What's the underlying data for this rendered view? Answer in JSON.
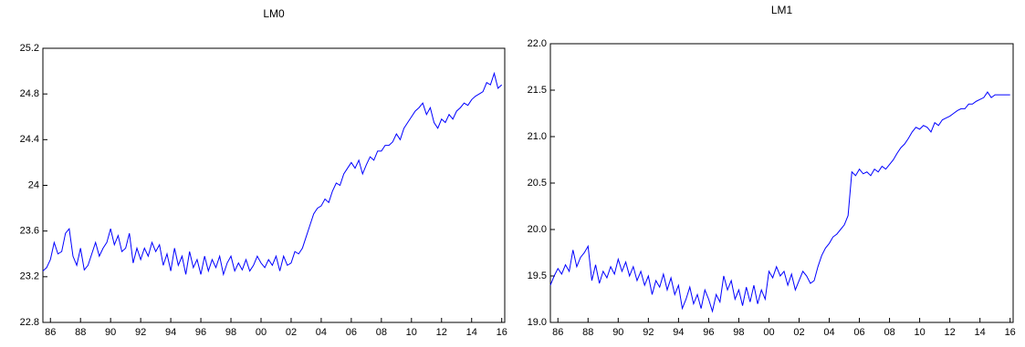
{
  "chart_data": [
    {
      "type": "line",
      "title": "LM0",
      "color": "#0000ff",
      "x": [
        1985.5,
        1985.75,
        1986.0,
        1986.25,
        1986.5,
        1986.75,
        1987.0,
        1987.25,
        1987.5,
        1987.75,
        1988.0,
        1988.25,
        1988.5,
        1988.75,
        1989.0,
        1989.25,
        1989.5,
        1989.75,
        1990.0,
        1990.25,
        1990.5,
        1990.75,
        1991.0,
        1991.25,
        1991.5,
        1991.75,
        1992.0,
        1992.25,
        1992.5,
        1992.75,
        1993.0,
        1993.25,
        1993.5,
        1993.75,
        1994.0,
        1994.25,
        1994.5,
        1994.75,
        1995.0,
        1995.25,
        1995.5,
        1995.75,
        1996.0,
        1996.25,
        1996.5,
        1996.75,
        1997.0,
        1997.25,
        1997.5,
        1997.75,
        1998.0,
        1998.25,
        1998.5,
        1998.75,
        1999.0,
        1999.25,
        1999.5,
        1999.75,
        2000.0,
        2000.25,
        2000.5,
        2000.75,
        2001.0,
        2001.25,
        2001.5,
        2001.75,
        2002.0,
        2002.25,
        2002.5,
        2002.75,
        2003.0,
        2003.25,
        2003.5,
        2003.75,
        2004.0,
        2004.25,
        2004.5,
        2004.75,
        2005.0,
        2005.25,
        2005.5,
        2005.75,
        2006.0,
        2006.25,
        2006.5,
        2006.75,
        2007.0,
        2007.25,
        2007.5,
        2007.75,
        2008.0,
        2008.25,
        2008.5,
        2008.75,
        2009.0,
        2009.25,
        2009.5,
        2009.75,
        2010.0,
        2010.25,
        2010.5,
        2010.75,
        2011.0,
        2011.25,
        2011.5,
        2011.75,
        2012.0,
        2012.25,
        2012.5,
        2012.75,
        2013.0,
        2013.25,
        2013.5,
        2013.75,
        2014.0,
        2014.25,
        2014.5,
        2014.75,
        2015.0,
        2015.25,
        2015.5,
        2015.75,
        2016.0
      ],
      "values": [
        23.25,
        23.28,
        23.35,
        23.5,
        23.4,
        23.42,
        23.58,
        23.62,
        23.38,
        23.3,
        23.45,
        23.26,
        23.3,
        23.4,
        23.5,
        23.38,
        23.45,
        23.5,
        23.62,
        23.48,
        23.56,
        23.42,
        23.45,
        23.58,
        23.32,
        23.45,
        23.35,
        23.45,
        23.38,
        23.5,
        23.42,
        23.48,
        23.3,
        23.4,
        23.25,
        23.45,
        23.3,
        23.38,
        23.22,
        23.42,
        23.28,
        23.35,
        23.22,
        23.38,
        23.25,
        23.35,
        23.28,
        23.38,
        23.22,
        23.32,
        23.38,
        23.25,
        23.32,
        23.26,
        23.35,
        23.25,
        23.3,
        23.38,
        23.32,
        23.28,
        23.35,
        23.3,
        23.38,
        23.25,
        23.38,
        23.3,
        23.32,
        23.42,
        23.4,
        23.45,
        23.55,
        23.65,
        23.75,
        23.8,
        23.82,
        23.88,
        23.85,
        23.95,
        24.02,
        24.0,
        24.1,
        24.15,
        24.2,
        24.15,
        24.22,
        24.1,
        24.18,
        24.25,
        24.22,
        24.3,
        24.3,
        24.35,
        24.35,
        24.38,
        24.45,
        24.4,
        24.5,
        24.55,
        24.6,
        24.65,
        24.68,
        24.72,
        24.62,
        24.68,
        24.55,
        24.5,
        24.58,
        24.55,
        24.62,
        24.58,
        24.65,
        24.68,
        24.72,
        24.7,
        24.75,
        24.78,
        24.8,
        24.82,
        24.9,
        24.88,
        24.98,
        24.85,
        24.88
      ],
      "xlim": [
        1985.5,
        2016.2
      ],
      "xticks": [
        {
          "value": 1986,
          "label": "86"
        },
        {
          "value": 1988,
          "label": "88"
        },
        {
          "value": 1990,
          "label": "90"
        },
        {
          "value": 1992,
          "label": "92"
        },
        {
          "value": 1994,
          "label": "94"
        },
        {
          "value": 1996,
          "label": "96"
        },
        {
          "value": 1998,
          "label": "98"
        },
        {
          "value": 2000,
          "label": "00"
        },
        {
          "value": 2002,
          "label": "02"
        },
        {
          "value": 2004,
          "label": "04"
        },
        {
          "value": 2006,
          "label": "06"
        },
        {
          "value": 2008,
          "label": "08"
        },
        {
          "value": 2010,
          "label": "10"
        },
        {
          "value": 2012,
          "label": "12"
        },
        {
          "value": 2014,
          "label": "14"
        },
        {
          "value": 2016,
          "label": "16"
        }
      ],
      "ylim": [
        22.8,
        25.2
      ],
      "yticks": [
        22.8,
        23.2,
        23.6,
        24.0,
        24.4,
        24.8,
        25.2
      ]
    },
    {
      "type": "line",
      "title": "LM1",
      "color": "#0000ff",
      "x": [
        1985.5,
        1985.75,
        1986.0,
        1986.25,
        1986.5,
        1986.75,
        1987.0,
        1987.25,
        1987.5,
        1987.75,
        1988.0,
        1988.25,
        1988.5,
        1988.75,
        1989.0,
        1989.25,
        1989.5,
        1989.75,
        1990.0,
        1990.25,
        1990.5,
        1990.75,
        1991.0,
        1991.25,
        1991.5,
        1991.75,
        1992.0,
        1992.25,
        1992.5,
        1992.75,
        1993.0,
        1993.25,
        1993.5,
        1993.75,
        1994.0,
        1994.25,
        1994.5,
        1994.75,
        1995.0,
        1995.25,
        1995.5,
        1995.75,
        1996.0,
        1996.25,
        1996.5,
        1996.75,
        1997.0,
        1997.25,
        1997.5,
        1997.75,
        1998.0,
        1998.25,
        1998.5,
        1998.75,
        1999.0,
        1999.25,
        1999.5,
        1999.75,
        2000.0,
        2000.25,
        2000.5,
        2000.75,
        2001.0,
        2001.25,
        2001.5,
        2001.75,
        2002.0,
        2002.25,
        2002.5,
        2002.75,
        2003.0,
        2003.25,
        2003.5,
        2003.75,
        2004.0,
        2004.25,
        2004.5,
        2004.75,
        2005.0,
        2005.25,
        2005.5,
        2005.75,
        2006.0,
        2006.25,
        2006.5,
        2006.75,
        2007.0,
        2007.25,
        2007.5,
        2007.75,
        2008.0,
        2008.25,
        2008.5,
        2008.75,
        2009.0,
        2009.25,
        2009.5,
        2009.75,
        2010.0,
        2010.25,
        2010.5,
        2010.75,
        2011.0,
        2011.25,
        2011.5,
        2011.75,
        2012.0,
        2012.25,
        2012.5,
        2012.75,
        2013.0,
        2013.25,
        2013.5,
        2013.75,
        2014.0,
        2014.25,
        2014.5,
        2014.75,
        2015.0,
        2015.25,
        2015.5,
        2015.75,
        2016.0
      ],
      "values": [
        19.4,
        19.5,
        19.58,
        19.52,
        19.62,
        19.55,
        19.78,
        19.6,
        19.7,
        19.75,
        19.82,
        19.45,
        19.62,
        19.42,
        19.55,
        19.48,
        19.6,
        19.52,
        19.68,
        19.55,
        19.65,
        19.5,
        19.6,
        19.45,
        19.55,
        19.4,
        19.5,
        19.3,
        19.45,
        19.38,
        19.52,
        19.35,
        19.48,
        19.3,
        19.4,
        19.15,
        19.25,
        19.38,
        19.2,
        19.3,
        19.15,
        19.35,
        19.25,
        19.12,
        19.3,
        19.22,
        19.5,
        19.35,
        19.45,
        19.25,
        19.35,
        19.18,
        19.38,
        19.22,
        19.4,
        19.2,
        19.35,
        19.25,
        19.55,
        19.48,
        19.6,
        19.5,
        19.55,
        19.4,
        19.52,
        19.35,
        19.45,
        19.55,
        19.5,
        19.42,
        19.45,
        19.6,
        19.72,
        19.8,
        19.85,
        19.92,
        19.95,
        20.0,
        20.05,
        20.15,
        20.62,
        20.58,
        20.65,
        20.6,
        20.62,
        20.58,
        20.65,
        20.62,
        20.68,
        20.65,
        20.7,
        20.75,
        20.82,
        20.88,
        20.92,
        20.98,
        21.05,
        21.1,
        21.08,
        21.12,
        21.1,
        21.05,
        21.15,
        21.12,
        21.18,
        21.2,
        21.22,
        21.25,
        21.28,
        21.3,
        21.3,
        21.35,
        21.35,
        21.38,
        21.4,
        21.42,
        21.48,
        21.42,
        21.45,
        21.45,
        21.45,
        21.45,
        21.45
      ],
      "xlim": [
        1985.5,
        2016.2
      ],
      "xticks": [
        {
          "value": 1986,
          "label": "86"
        },
        {
          "value": 1988,
          "label": "88"
        },
        {
          "value": 1990,
          "label": "90"
        },
        {
          "value": 1992,
          "label": "92"
        },
        {
          "value": 1994,
          "label": "94"
        },
        {
          "value": 1996,
          "label": "96"
        },
        {
          "value": 1998,
          "label": "98"
        },
        {
          "value": 2000,
          "label": "00"
        },
        {
          "value": 2002,
          "label": "02"
        },
        {
          "value": 2004,
          "label": "04"
        },
        {
          "value": 2006,
          "label": "06"
        },
        {
          "value": 2008,
          "label": "08"
        },
        {
          "value": 2010,
          "label": "10"
        },
        {
          "value": 2012,
          "label": "12"
        },
        {
          "value": 2014,
          "label": "14"
        },
        {
          "value": 2016,
          "label": "16"
        }
      ],
      "ylim": [
        19.0,
        22.0
      ],
      "yticks": [
        {
          "value": 19.0,
          "label": "19.0"
        },
        19.5,
        {
          "value": 20.0,
          "label": "20.0"
        },
        20.5,
        {
          "value": 21.0,
          "label": "21.0"
        },
        21.5,
        {
          "value": 22.0,
          "label": "22.0"
        }
      ]
    }
  ]
}
